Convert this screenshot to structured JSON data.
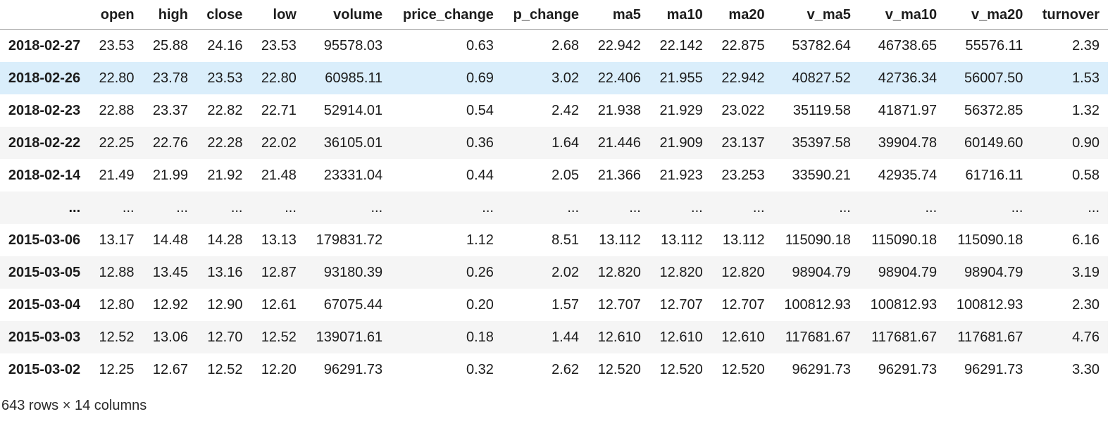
{
  "colors": {
    "row_stripe": "#f5f5f5",
    "row_highlight": "#daeefb",
    "header_border": "#9b9b9b"
  },
  "table": {
    "index_header": "",
    "columns": [
      "open",
      "high",
      "close",
      "low",
      "volume",
      "price_change",
      "p_change",
      "ma5",
      "ma10",
      "ma20",
      "v_ma5",
      "v_ma10",
      "v_ma20",
      "turnover"
    ],
    "rows": [
      {
        "index": "2018-02-27",
        "highlighted": false,
        "values": [
          "23.53",
          "25.88",
          "24.16",
          "23.53",
          "95578.03",
          "0.63",
          "2.68",
          "22.942",
          "22.142",
          "22.875",
          "53782.64",
          "46738.65",
          "55576.11",
          "2.39"
        ]
      },
      {
        "index": "2018-02-26",
        "highlighted": true,
        "values": [
          "22.80",
          "23.78",
          "23.53",
          "22.80",
          "60985.11",
          "0.69",
          "3.02",
          "22.406",
          "21.955",
          "22.942",
          "40827.52",
          "42736.34",
          "56007.50",
          "1.53"
        ]
      },
      {
        "index": "2018-02-23",
        "highlighted": false,
        "values": [
          "22.88",
          "23.37",
          "22.82",
          "22.71",
          "52914.01",
          "0.54",
          "2.42",
          "21.938",
          "21.929",
          "23.022",
          "35119.58",
          "41871.97",
          "56372.85",
          "1.32"
        ]
      },
      {
        "index": "2018-02-22",
        "highlighted": false,
        "values": [
          "22.25",
          "22.76",
          "22.28",
          "22.02",
          "36105.01",
          "0.36",
          "1.64",
          "21.446",
          "21.909",
          "23.137",
          "35397.58",
          "39904.78",
          "60149.60",
          "0.90"
        ]
      },
      {
        "index": "2018-02-14",
        "highlighted": false,
        "values": [
          "21.49",
          "21.99",
          "21.92",
          "21.48",
          "23331.04",
          "0.44",
          "2.05",
          "21.366",
          "21.923",
          "23.253",
          "33590.21",
          "42935.74",
          "61716.11",
          "0.58"
        ]
      },
      {
        "index": "...",
        "highlighted": false,
        "values": [
          "...",
          "...",
          "...",
          "...",
          "...",
          "...",
          "...",
          "...",
          "...",
          "...",
          "...",
          "...",
          "...",
          "..."
        ]
      },
      {
        "index": "2015-03-06",
        "highlighted": false,
        "values": [
          "13.17",
          "14.48",
          "14.28",
          "13.13",
          "179831.72",
          "1.12",
          "8.51",
          "13.112",
          "13.112",
          "13.112",
          "115090.18",
          "115090.18",
          "115090.18",
          "6.16"
        ]
      },
      {
        "index": "2015-03-05",
        "highlighted": false,
        "values": [
          "12.88",
          "13.45",
          "13.16",
          "12.87",
          "93180.39",
          "0.26",
          "2.02",
          "12.820",
          "12.820",
          "12.820",
          "98904.79",
          "98904.79",
          "98904.79",
          "3.19"
        ]
      },
      {
        "index": "2015-03-04",
        "highlighted": false,
        "values": [
          "12.80",
          "12.92",
          "12.90",
          "12.61",
          "67075.44",
          "0.20",
          "1.57",
          "12.707",
          "12.707",
          "12.707",
          "100812.93",
          "100812.93",
          "100812.93",
          "2.30"
        ]
      },
      {
        "index": "2015-03-03",
        "highlighted": false,
        "values": [
          "12.52",
          "13.06",
          "12.70",
          "12.52",
          "139071.61",
          "0.18",
          "1.44",
          "12.610",
          "12.610",
          "12.610",
          "117681.67",
          "117681.67",
          "117681.67",
          "4.76"
        ]
      },
      {
        "index": "2015-03-02",
        "highlighted": false,
        "values": [
          "12.25",
          "12.67",
          "12.52",
          "12.20",
          "96291.73",
          "0.32",
          "2.62",
          "12.520",
          "12.520",
          "12.520",
          "96291.73",
          "96291.73",
          "96291.73",
          "3.30"
        ]
      }
    ],
    "footer": "643 rows × 14 columns"
  }
}
